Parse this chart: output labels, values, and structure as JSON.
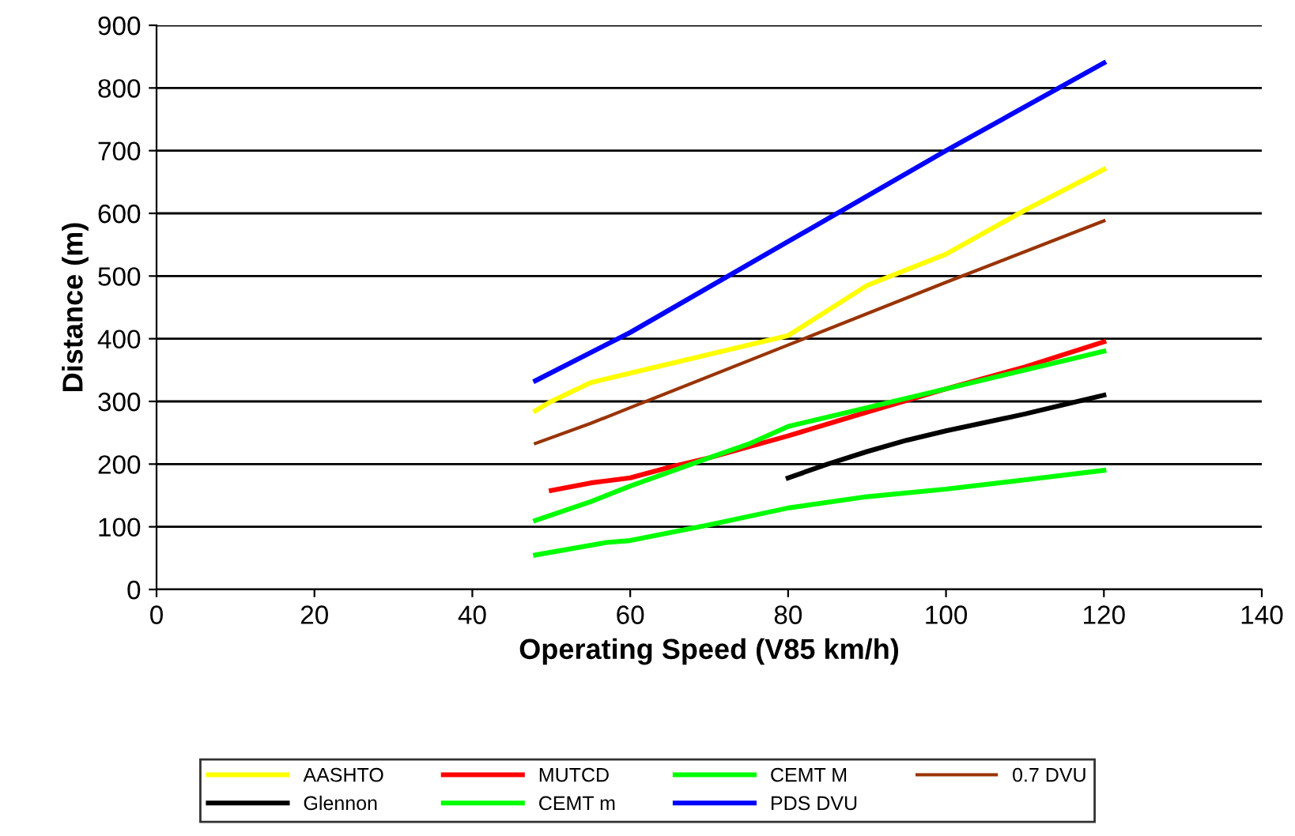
{
  "chart_data": {
    "type": "line",
    "xlabel": "Operating Speed (V85 km/h)",
    "ylabel": "Distance (m)",
    "xlim": [
      0,
      140
    ],
    "xticks": [
      0,
      20,
      40,
      60,
      80,
      100,
      120,
      140
    ],
    "ylim": [
      0,
      900
    ],
    "yticks": [
      0,
      100,
      200,
      300,
      400,
      500,
      600,
      700,
      800,
      900
    ],
    "grid": "y",
    "legend": "bottom",
    "marker": "none",
    "line_style": "solid",
    "series": [
      {
        "name": "AASHTO",
        "color": "#ffff00",
        "x": [
          48,
          50,
          55,
          60,
          70,
          80,
          85,
          90,
          100,
          110,
          120
        ],
        "values": [
          285,
          300,
          330,
          345,
          375,
          405,
          445,
          485,
          535,
          605,
          670
        ]
      },
      {
        "name": "Glennon",
        "color": "#000000",
        "x": [
          80,
          85,
          90,
          95,
          100,
          110,
          120
        ],
        "values": [
          178,
          200,
          220,
          238,
          253,
          280,
          310
        ]
      },
      {
        "name": "MUTCD",
        "color": "#ff0000",
        "x": [
          50,
          55,
          60,
          65,
          70,
          80,
          90,
          100,
          110,
          120
        ],
        "values": [
          158,
          170,
          178,
          195,
          210,
          245,
          283,
          320,
          355,
          395
        ]
      },
      {
        "name": "CEMT m",
        "color": "#00ff00",
        "x": [
          48,
          57,
          60,
          70,
          80,
          90,
          100,
          110,
          120
        ],
        "values": [
          55,
          75,
          78,
          103,
          130,
          148,
          160,
          175,
          190
        ]
      },
      {
        "name": "CEMT M",
        "color": "#00ff00",
        "x": [
          48,
          55,
          60,
          70,
          75,
          80,
          90,
          100,
          110,
          120
        ],
        "values": [
          110,
          140,
          165,
          210,
          232,
          260,
          290,
          320,
          350,
          380
        ]
      },
      {
        "name": "PDS DVU",
        "color": "#0000ff",
        "x": [
          48,
          60,
          80,
          100,
          120
        ],
        "values": [
          333,
          410,
          555,
          700,
          840
        ]
      },
      {
        "name": "0.7 DVU",
        "color": "#993300",
        "x": [
          48,
          55,
          60,
          80,
          100,
          120
        ],
        "values": [
          233,
          265,
          290,
          390,
          490,
          588
        ]
      }
    ]
  }
}
